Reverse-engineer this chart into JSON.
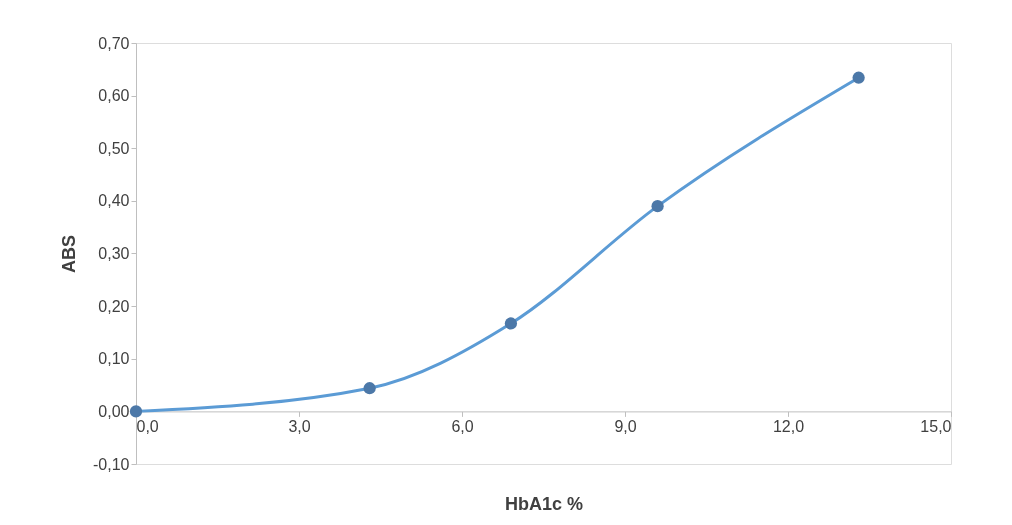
{
  "chart_data": {
    "type": "line",
    "xlabel": "HbA1c %",
    "ylabel": "ABS",
    "x": [
      0,
      4.3,
      6.9,
      9.6,
      13.3
    ],
    "series": [
      {
        "color": "#5b9bd5",
        "values": [
          0,
          0.044,
          0.167,
          0.39,
          0.634
        ]
      }
    ],
    "marker": "circle",
    "grid": false,
    "xlim": [
      0,
      15
    ],
    "ylim": [
      -0.1,
      0.7
    ],
    "xticks": [
      {
        "value": 0,
        "label": "0,0"
      },
      {
        "value": 3,
        "label": "3,0"
      },
      {
        "value": 6,
        "label": "6,0"
      },
      {
        "value": 9,
        "label": "9,0"
      },
      {
        "value": 12,
        "label": "12,0"
      },
      {
        "value": 15,
        "label": "15,0"
      }
    ],
    "yticks": [
      {
        "value": -0.1,
        "label": "-0,10"
      },
      {
        "value": 0,
        "label": "0,00"
      },
      {
        "value": 0.1,
        "label": "0,10"
      },
      {
        "value": 0.2,
        "label": "0,20"
      },
      {
        "value": 0.3,
        "label": "0,30"
      },
      {
        "value": 0.4,
        "label": "0,40"
      },
      {
        "value": 0.5,
        "label": "0,50"
      },
      {
        "value": 0.6,
        "label": "0,60"
      },
      {
        "value": 0.7,
        "label": "0,70"
      }
    ]
  }
}
